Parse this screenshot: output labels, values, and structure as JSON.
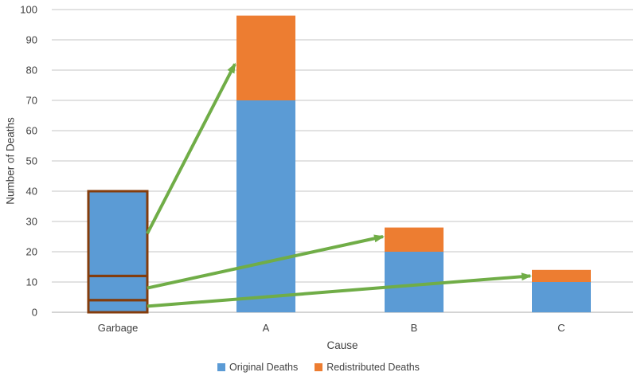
{
  "figure": {
    "background": "#ffffff"
  },
  "legend": {
    "items": [
      {
        "label": "Original Deaths",
        "color": "#5B9BD5"
      },
      {
        "label": "Redistributed Deaths",
        "color": "#ED7D31"
      }
    ]
  },
  "chart_data": {
    "type": "bar",
    "stacked": true,
    "title": "",
    "xlabel": "Cause",
    "ylabel": "Number of Deaths",
    "categories": [
      "Garbage",
      "A",
      "B",
      "C"
    ],
    "series": [
      {
        "name": "Original Deaths",
        "color": "#5B9BD5",
        "values": [
          40,
          70,
          20,
          10
        ]
      },
      {
        "name": "Redistributed Deaths",
        "color": "#ED7D31",
        "values": [
          0,
          28,
          8,
          4
        ]
      }
    ],
    "totals": [
      40,
      98,
      28,
      14
    ],
    "ylim": [
      0,
      100
    ],
    "ytick_step": 10,
    "yticks": [
      0,
      10,
      20,
      30,
      40,
      50,
      60,
      70,
      80,
      90,
      100
    ],
    "grid": true,
    "gridline_color": "#D9D9D9",
    "axis_line_color": "#C6C6C6",
    "tick_label_color": "#404040",
    "legend_position": "bottom",
    "garbage_segments": {
      "category": "Garbage",
      "outline_color": "#843C0C",
      "boundaries": [
        0,
        4,
        12,
        40
      ],
      "segment_values": [
        4,
        8,
        28
      ]
    },
    "arrows": [
      {
        "from_category": "Garbage",
        "from_value": 26,
        "to_category": "A",
        "to_value": 82,
        "color": "#70AD47"
      },
      {
        "from_category": "Garbage",
        "from_value": 8,
        "to_category": "B",
        "to_value": 25,
        "color": "#70AD47"
      },
      {
        "from_category": "Garbage",
        "from_value": 2,
        "to_category": "C",
        "to_value": 12,
        "color": "#70AD47"
      }
    ]
  }
}
